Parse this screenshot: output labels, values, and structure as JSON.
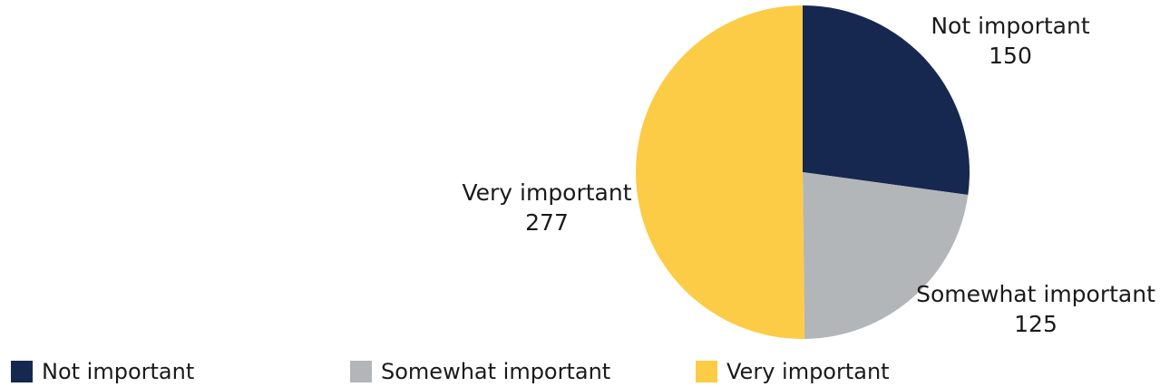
{
  "chart_data": {
    "type": "pie",
    "title": "",
    "slices": [
      {
        "label": "Not important",
        "value": 150,
        "color": "#16284f"
      },
      {
        "label": "Somewhat important",
        "value": 125,
        "color": "#b3b6b8"
      },
      {
        "label": "Very important",
        "value": 277,
        "color": "#fdcc46"
      }
    ],
    "start_angle": "12 o'clock",
    "direction": "clockwise",
    "legend": {
      "placement": "bottom",
      "items": [
        "Not important",
        "Somewhat important",
        "Very important"
      ]
    }
  }
}
